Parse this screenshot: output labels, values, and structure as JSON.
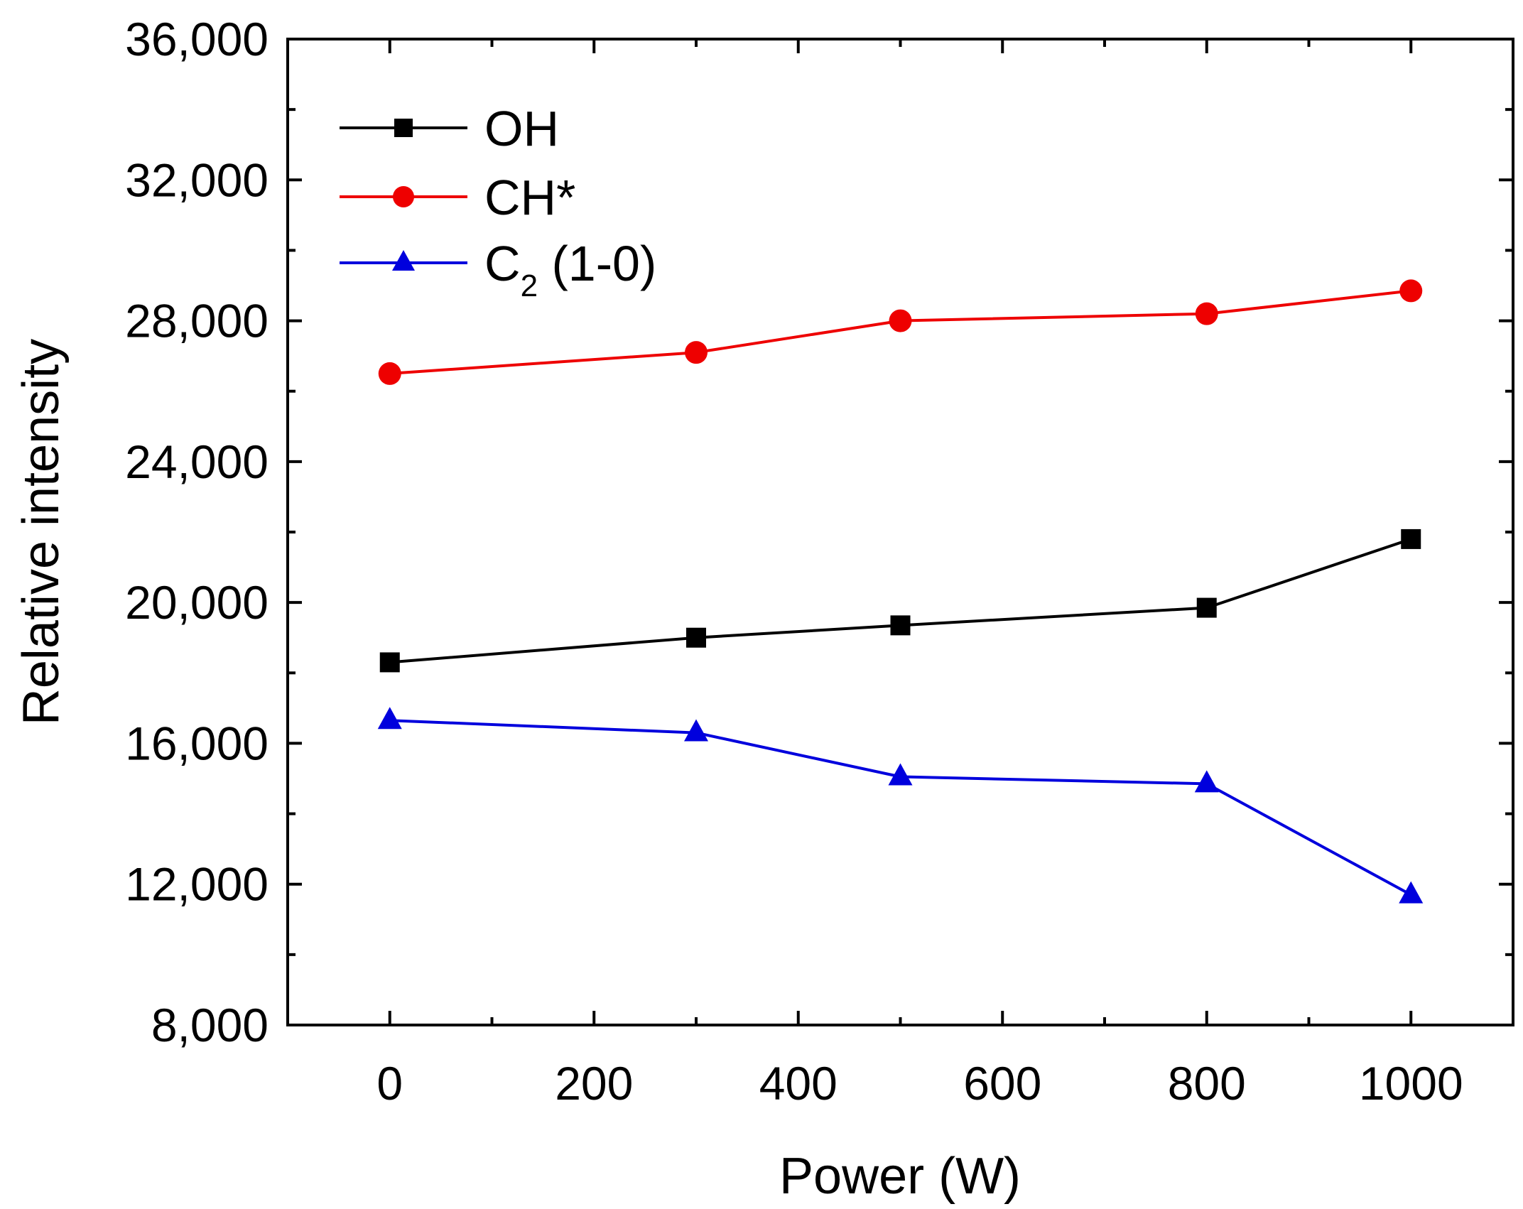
{
  "chart_data": {
    "type": "line",
    "xlabel": "Power (W)",
    "ylabel": "Relative intensity",
    "xlim": [
      -100,
      1100
    ],
    "ylim": [
      8000,
      36000
    ],
    "x_ticks": [
      0,
      200,
      400,
      600,
      800,
      1000
    ],
    "x_tick_labels": [
      "0",
      "200",
      "400",
      "600",
      "800",
      "1000"
    ],
    "x_minor_ticks": [
      -100,
      100,
      300,
      500,
      700,
      900,
      1100
    ],
    "y_ticks": [
      8000,
      12000,
      16000,
      20000,
      24000,
      28000,
      32000,
      36000
    ],
    "y_tick_labels": [
      "8,000",
      "12,000",
      "16,000",
      "20,000",
      "24,000",
      "28,000",
      "32,000",
      "36,000"
    ],
    "y_minor_ticks": [
      10000,
      14000,
      18000,
      22000,
      26000,
      30000,
      34000
    ],
    "grid": false,
    "legend_position": "top-left",
    "x": [
      0,
      300,
      500,
      800,
      1000
    ],
    "series": [
      {
        "name": "OH",
        "values": [
          18300,
          19000,
          19350,
          19850,
          21800
        ],
        "color": "#000000",
        "marker": "square"
      },
      {
        "name": "CH*",
        "values": [
          26500,
          27100,
          28000,
          28200,
          28850
        ],
        "color": "#ee0000",
        "marker": "circle"
      },
      {
        "name": "C2 (1-0)",
        "label_main": "C",
        "label_sub": "2",
        "label_rest": " (1-0)",
        "values": [
          16650,
          16300,
          15050,
          14850,
          11700
        ],
        "color": "#0000dd",
        "marker": "triangle"
      }
    ]
  }
}
